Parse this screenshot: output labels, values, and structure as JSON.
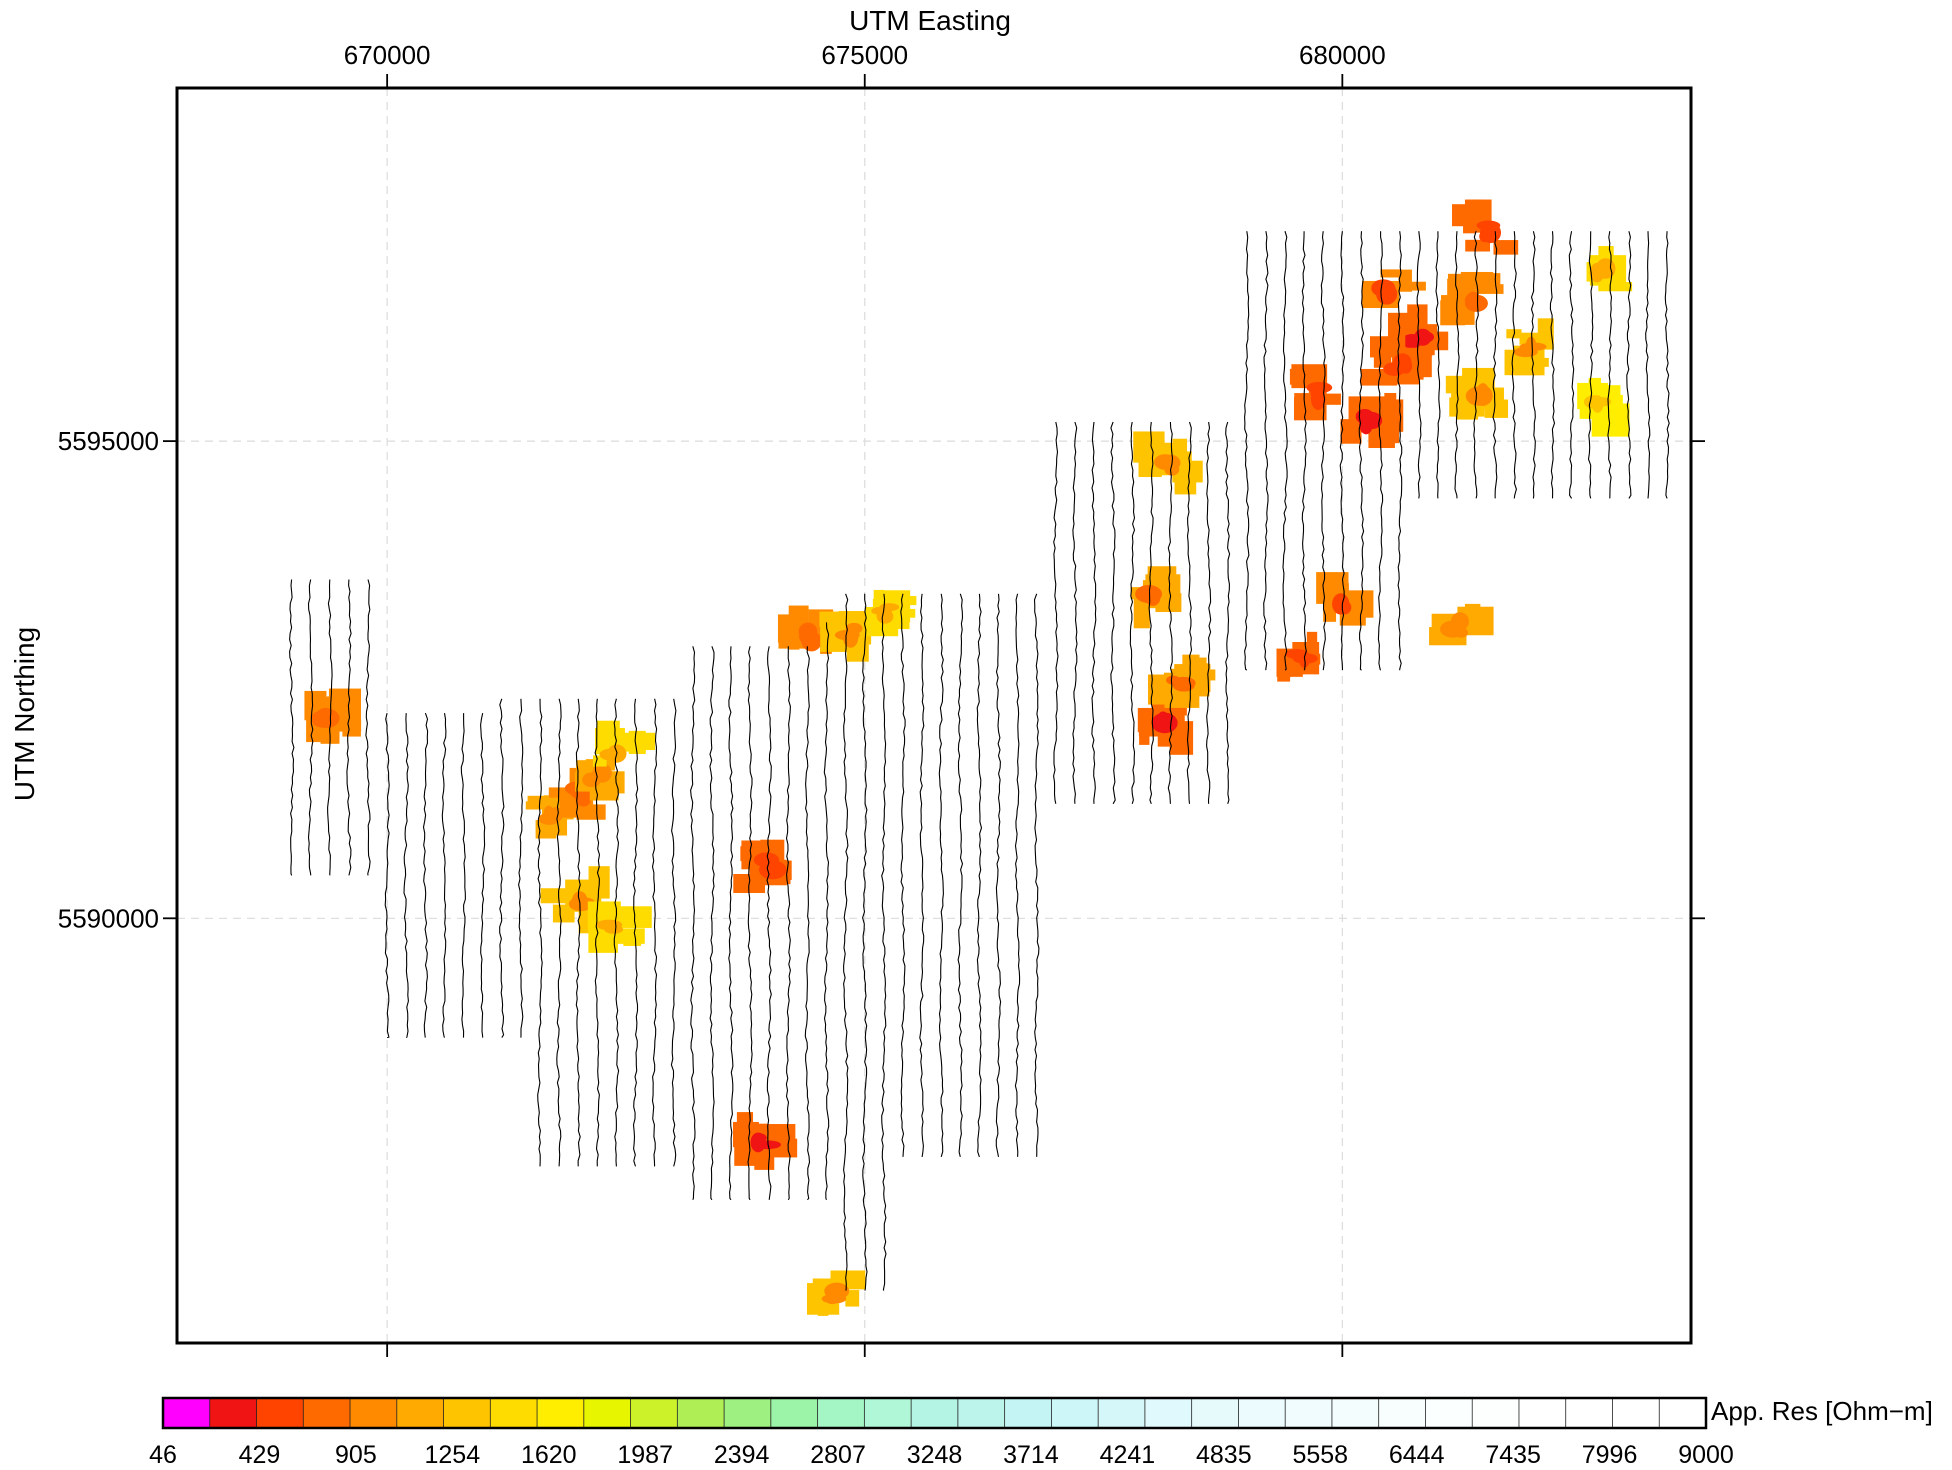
{
  "chart_data": {
    "type": "heatmap",
    "title": "",
    "x_axis": {
      "label": "UTM Easting",
      "position": "top",
      "range": [
        667800,
        683650
      ],
      "ticks": [
        670000,
        675000,
        680000
      ]
    },
    "y_axis": {
      "label": "UTM Northing",
      "position": "left",
      "range": [
        5585550,
        5598700
      ],
      "ticks": [
        5590000,
        5595000
      ]
    },
    "grid": true,
    "grid_style": "dashed-light",
    "colorbar": {
      "label": "App. Res [Ohm−m]",
      "tick_labels": [
        "46",
        "429",
        "905",
        "1254",
        "1620",
        "1987",
        "2394",
        "2807",
        "3248",
        "3714",
        "4241",
        "4835",
        "5558",
        "6444",
        "7435",
        "7996",
        "9000"
      ],
      "colors": [
        "#ff00ff",
        "#f01414",
        "#ff4400",
        "#ff6a00",
        "#ff8a00",
        "#ffaa00",
        "#ffc400",
        "#ffdc00",
        "#ffee00",
        "#e8f500",
        "#ccf22a",
        "#b0ee55",
        "#9ef080",
        "#9cf4a8",
        "#a4f6c4",
        "#b0f7d8",
        "#b4f4e4",
        "#bcf4ec",
        "#c4f4f4",
        "#ccf6f8",
        "#d6f7fa",
        "#e0f9fc",
        "#e6fafc",
        "#ecfbfd",
        "#f0fcfe",
        "#f4fdfe",
        "#f8fefe",
        "#fbffff",
        "#fdffff",
        "#ffffff",
        "#ffffff",
        "#ffffff",
        "#ffffff"
      ]
    },
    "survey_lines": [
      [
        669000,
        5593550,
        5590450
      ],
      [
        669200,
        5593550,
        5590450
      ],
      [
        669400,
        5593550,
        5590450
      ],
      [
        669600,
        5593550,
        5590450
      ],
      [
        669800,
        5593550,
        5590450
      ],
      [
        670000,
        5592150,
        5588750
      ],
      [
        670200,
        5592150,
        5588750
      ],
      [
        670400,
        5592150,
        5588750
      ],
      [
        670600,
        5592150,
        5588750
      ],
      [
        670800,
        5592150,
        5588750
      ],
      [
        671000,
        5592150,
        5588750
      ],
      [
        671200,
        5592300,
        5588750
      ],
      [
        671400,
        5592300,
        5588750
      ],
      [
        671600,
        5592300,
        5587400
      ],
      [
        671800,
        5592300,
        5587400
      ],
      [
        672000,
        5592300,
        5587400
      ],
      [
        672200,
        5592300,
        5587400
      ],
      [
        672400,
        5592300,
        5587400
      ],
      [
        672600,
        5592300,
        5587400
      ],
      [
        672800,
        5592300,
        5587400
      ],
      [
        673000,
        5592300,
        5587400
      ],
      [
        673200,
        5592850,
        5587050
      ],
      [
        673400,
        5592850,
        5587050
      ],
      [
        673600,
        5592850,
        5587050
      ],
      [
        673800,
        5592850,
        5587050
      ],
      [
        674000,
        5592850,
        5587050
      ],
      [
        674200,
        5592850,
        5587050
      ],
      [
        674400,
        5592850,
        5587050
      ],
      [
        674600,
        5593100,
        5587050
      ],
      [
        674800,
        5593400,
        5586100
      ],
      [
        675000,
        5593400,
        5586100
      ],
      [
        675200,
        5593400,
        5586100
      ],
      [
        675400,
        5593400,
        5587500
      ],
      [
        675600,
        5593400,
        5587500
      ],
      [
        675800,
        5593400,
        5587500
      ],
      [
        676000,
        5593400,
        5587500
      ],
      [
        676200,
        5593400,
        5587500
      ],
      [
        676400,
        5593400,
        5587500
      ],
      [
        676600,
        5593400,
        5587500
      ],
      [
        676800,
        5593400,
        5587500
      ],
      [
        677000,
        5595200,
        5591200
      ],
      [
        677200,
        5595200,
        5591200
      ],
      [
        677400,
        5595200,
        5591200
      ],
      [
        677600,
        5595200,
        5591200
      ],
      [
        677800,
        5595200,
        5591200
      ],
      [
        678000,
        5595200,
        5591200
      ],
      [
        678200,
        5595200,
        5591200
      ],
      [
        678400,
        5595200,
        5591200
      ],
      [
        678600,
        5595200,
        5591200
      ],
      [
        678800,
        5595200,
        5591200
      ],
      [
        679000,
        5597200,
        5592600
      ],
      [
        679200,
        5597200,
        5592600
      ],
      [
        679400,
        5597200,
        5592600
      ],
      [
        679600,
        5597200,
        5592600
      ],
      [
        679800,
        5597200,
        5592600
      ],
      [
        680000,
        5597200,
        5592600
      ],
      [
        680200,
        5597200,
        5592600
      ],
      [
        680400,
        5597200,
        5592600
      ],
      [
        680600,
        5597200,
        5592600
      ],
      [
        680800,
        5597200,
        5594400
      ],
      [
        681000,
        5597200,
        5594400
      ],
      [
        681200,
        5597200,
        5594400
      ],
      [
        681400,
        5597200,
        5594400
      ],
      [
        681600,
        5597200,
        5594400
      ],
      [
        681800,
        5597200,
        5594400
      ],
      [
        682000,
        5597200,
        5594400
      ],
      [
        682200,
        5597200,
        5594400
      ],
      [
        682400,
        5597200,
        5594400
      ],
      [
        682600,
        5597200,
        5594400
      ],
      [
        682800,
        5597200,
        5594400
      ],
      [
        683000,
        5597200,
        5594400
      ],
      [
        683200,
        5597200,
        5594400
      ],
      [
        683400,
        5597200,
        5594400
      ]
    ],
    "anomalies": [
      {
        "x": 669400,
        "y": 5592100,
        "value": 700
      },
      {
        "x": 671700,
        "y": 5591100,
        "value": 900
      },
      {
        "x": 672000,
        "y": 5591300,
        "value": 700
      },
      {
        "x": 672200,
        "y": 5591500,
        "value": 900
      },
      {
        "x": 672400,
        "y": 5591750,
        "value": 1100
      },
      {
        "x": 672000,
        "y": 5590200,
        "value": 1000
      },
      {
        "x": 672400,
        "y": 5589900,
        "value": 1200
      },
      {
        "x": 674000,
        "y": 5590550,
        "value": 500
      },
      {
        "x": 673950,
        "y": 5587650,
        "value": 350
      },
      {
        "x": 674400,
        "y": 5592950,
        "value": 700
      },
      {
        "x": 674900,
        "y": 5593000,
        "value": 1000
      },
      {
        "x": 675200,
        "y": 5593200,
        "value": 1100
      },
      {
        "x": 674650,
        "y": 5586050,
        "value": 1000
      },
      {
        "x": 678000,
        "y": 5593350,
        "value": 800
      },
      {
        "x": 678100,
        "y": 5592050,
        "value": 350
      },
      {
        "x": 678300,
        "y": 5592450,
        "value": 800
      },
      {
        "x": 678200,
        "y": 5594750,
        "value": 1000
      },
      {
        "x": 679600,
        "y": 5592750,
        "value": 450
      },
      {
        "x": 680000,
        "y": 5593300,
        "value": 600
      },
      {
        "x": 681200,
        "y": 5593050,
        "value": 900
      },
      {
        "x": 679700,
        "y": 5595500,
        "value": 450
      },
      {
        "x": 680300,
        "y": 5595200,
        "value": 350
      },
      {
        "x": 680800,
        "y": 5596100,
        "value": 400
      },
      {
        "x": 680600,
        "y": 5595800,
        "value": 450
      },
      {
        "x": 680500,
        "y": 5596600,
        "value": 600
      },
      {
        "x": 681400,
        "y": 5595450,
        "value": 1000
      },
      {
        "x": 681500,
        "y": 5597200,
        "value": 500
      },
      {
        "x": 681350,
        "y": 5596500,
        "value": 700
      },
      {
        "x": 682000,
        "y": 5595950,
        "value": 1000
      },
      {
        "x": 682700,
        "y": 5596800,
        "value": 1200
      },
      {
        "x": 682700,
        "y": 5595400,
        "value": 1300
      }
    ]
  }
}
